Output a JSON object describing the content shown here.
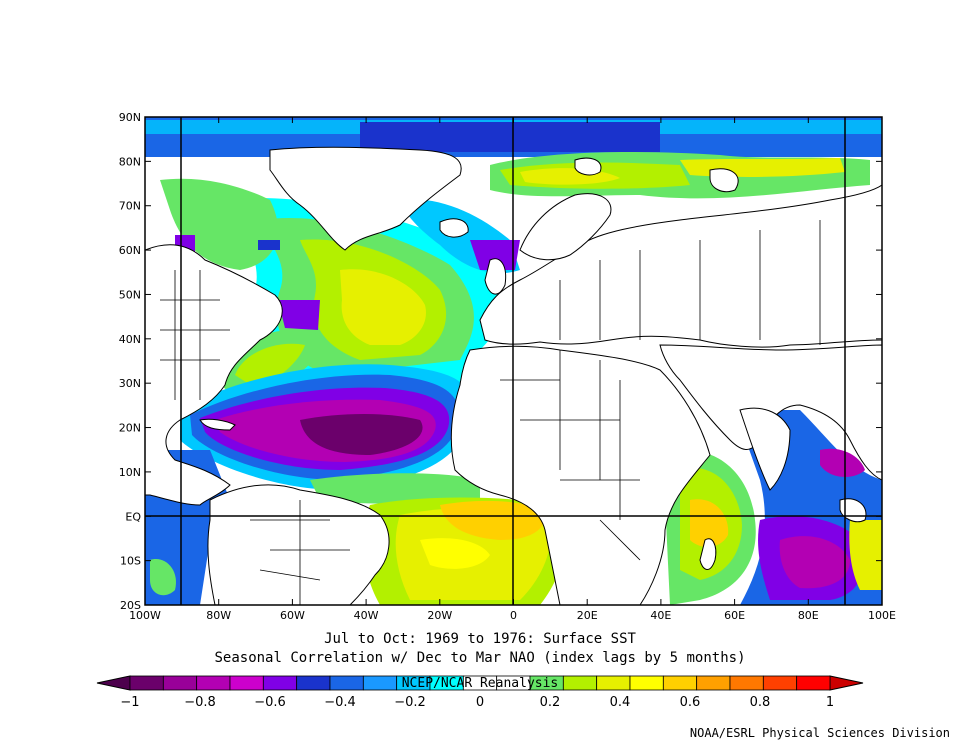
{
  "title": {
    "line1": "Jul to Oct: 1969 to 1976: Surface SST",
    "line2": "Seasonal Correlation w/ Dec to Mar NAO (index lags by 5 months)",
    "source": "NCEP/NCAR Reanalysis"
  },
  "credit": "NOAA/ESRL Physical Sciences Division",
  "axes": {
    "lon_labels": [
      "100W",
      "80W",
      "60W",
      "40W",
      "20W",
      "0",
      "20E",
      "40E",
      "60E",
      "80E",
      "100E"
    ],
    "lat_labels": [
      "90N",
      "80N",
      "70N",
      "60N",
      "50N",
      "40N",
      "30N",
      "20N",
      "10N",
      "EQ",
      "10S",
      "20S"
    ],
    "lon_range": [
      -100,
      100
    ],
    "lat_range": [
      -20,
      90
    ],
    "grid_lons": [
      -90,
      0,
      90
    ],
    "grid_lats": [
      0
    ]
  },
  "colorbar": {
    "tick_labels": [
      "−1",
      "−0.8",
      "−0.6",
      "−0.4",
      "−0.2",
      "0",
      "0.2",
      "0.4",
      "0.6",
      "0.8",
      "1"
    ],
    "colors": [
      "#6b006b",
      "#990099",
      "#b300b3",
      "#cc00cc",
      "#8000e6",
      "#1a33cc",
      "#1a66e6",
      "#1a99ff",
      "#00c8ff",
      "#00ffff",
      "#ffffff",
      "#ffffff",
      "#66e666",
      "#b3f000",
      "#e6f000",
      "#ffff00",
      "#ffd000",
      "#ffa000",
      "#ff7800",
      "#ff4000",
      "#ff0000"
    ],
    "end_low": "#4d004d",
    "end_high": "#cc0000"
  }
}
